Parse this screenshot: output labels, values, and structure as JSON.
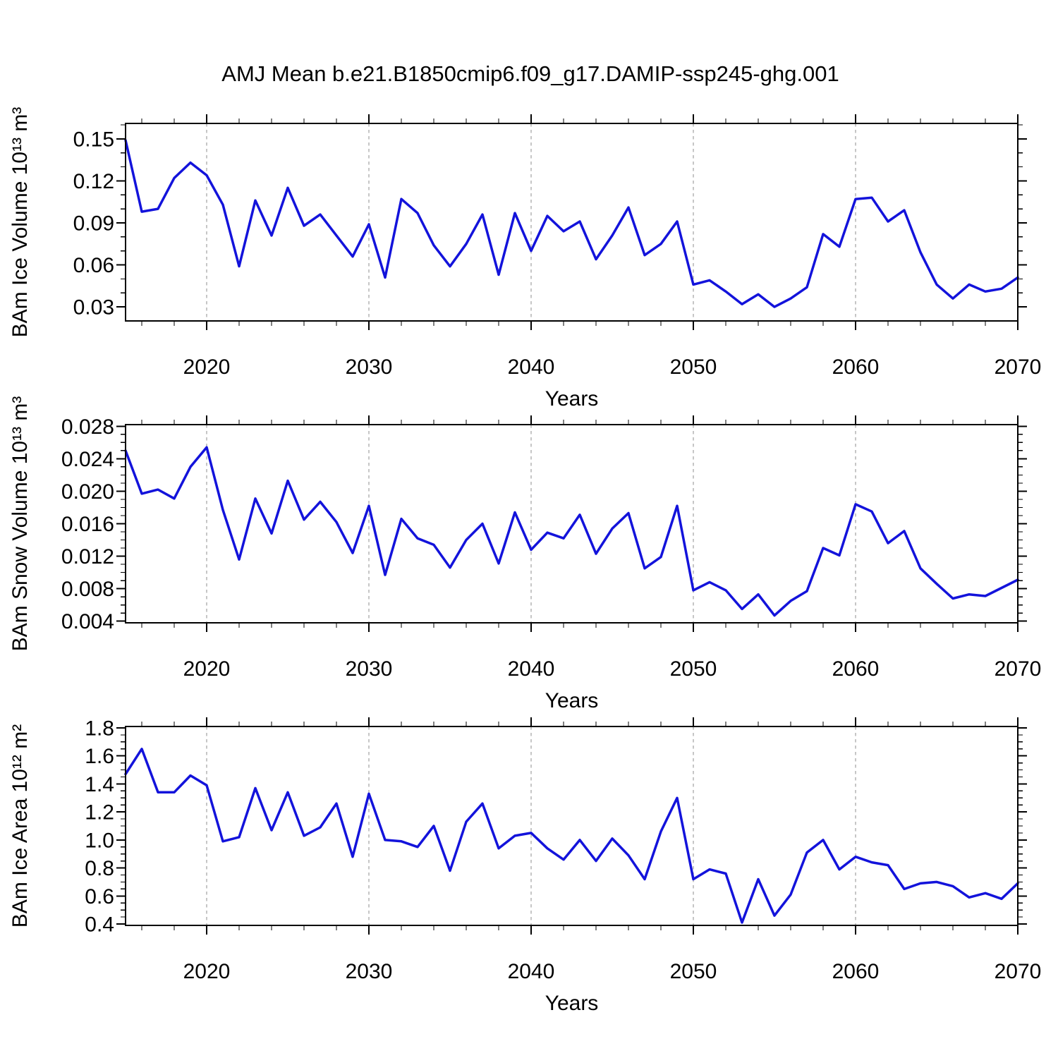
{
  "title": "AMJ Mean b.e21.B1850cmip6.f09_g17.DAMIP-ssp245-ghg.001",
  "colors": {
    "line": "#1313db",
    "grid": "#8c8c8c",
    "axis": "#000000",
    "background": "#ffffff",
    "text": "#000000"
  },
  "chart_data": [
    {
      "type": "line",
      "name": "bam-ice-volume",
      "ylabel": "BAm Ice Volume 10¹³ m³",
      "xlabel": "Years",
      "xlim": [
        2015,
        2070
      ],
      "ylim": [
        0.02,
        0.161
      ],
      "xticks": {
        "major": [
          2020,
          2030,
          2040,
          2050,
          2060,
          2070
        ],
        "labels": [
          "2020",
          "2030",
          "2040",
          "2050",
          "2060",
          "2070"
        ],
        "minor_step": 2
      },
      "yticks": {
        "major": [
          0.03,
          0.06,
          0.09,
          0.12,
          0.15
        ],
        "labels": [
          "0.03",
          "0.06",
          "0.09",
          "0.12",
          "0.15"
        ],
        "minor_step": 0.01
      },
      "grid_x": [
        2020,
        2030,
        2040,
        2050,
        2060
      ],
      "legend": null,
      "x": [
        2015,
        2016,
        2017,
        2018,
        2019,
        2020,
        2021,
        2022,
        2023,
        2024,
        2025,
        2026,
        2027,
        2028,
        2029,
        2030,
        2031,
        2032,
        2033,
        2034,
        2035,
        2036,
        2037,
        2038,
        2039,
        2040,
        2041,
        2042,
        2043,
        2044,
        2045,
        2046,
        2047,
        2048,
        2049,
        2050,
        2051,
        2052,
        2053,
        2054,
        2055,
        2056,
        2057,
        2058,
        2059,
        2060,
        2061,
        2062,
        2063,
        2064,
        2065,
        2066,
        2067,
        2068,
        2069,
        2070
      ],
      "values": [
        0.149,
        0.098,
        0.1,
        0.122,
        0.133,
        0.124,
        0.103,
        0.059,
        0.106,
        0.081,
        0.115,
        0.088,
        0.096,
        0.081,
        0.066,
        0.089,
        0.051,
        0.107,
        0.097,
        0.074,
        0.059,
        0.075,
        0.096,
        0.053,
        0.097,
        0.07,
        0.095,
        0.084,
        0.091,
        0.064,
        0.081,
        0.101,
        0.067,
        0.075,
        0.091,
        0.046,
        0.049,
        0.041,
        0.032,
        0.039,
        0.03,
        0.036,
        0.044,
        0.082,
        0.073,
        0.107,
        0.108,
        0.091,
        0.099,
        0.069,
        0.046,
        0.036,
        0.046,
        0.041,
        0.043,
        0.051
      ]
    },
    {
      "type": "line",
      "name": "bam-snow-volume",
      "ylabel": "BAm Snow Volume 10¹³ m³",
      "xlabel": "Years",
      "xlim": [
        2015,
        2070
      ],
      "ylim": [
        0.0038,
        0.0282
      ],
      "xticks": {
        "major": [
          2020,
          2030,
          2040,
          2050,
          2060,
          2070
        ],
        "labels": [
          "2020",
          "2030",
          "2040",
          "2050",
          "2060",
          "2070"
        ],
        "minor_step": 2
      },
      "yticks": {
        "major": [
          0.004,
          0.008,
          0.012,
          0.016,
          0.02,
          0.024,
          0.028
        ],
        "labels": [
          "0.004",
          "0.008",
          "0.012",
          "0.016",
          "0.020",
          "0.024",
          "0.028"
        ],
        "minor_step": 0.001
      },
      "grid_x": [
        2020,
        2030,
        2040,
        2050,
        2060
      ],
      "legend": null,
      "x": [
        2015,
        2016,
        2017,
        2018,
        2019,
        2020,
        2021,
        2022,
        2023,
        2024,
        2025,
        2026,
        2027,
        2028,
        2029,
        2030,
        2031,
        2032,
        2033,
        2034,
        2035,
        2036,
        2037,
        2038,
        2039,
        2040,
        2041,
        2042,
        2043,
        2044,
        2045,
        2046,
        2047,
        2048,
        2049,
        2050,
        2051,
        2052,
        2053,
        2054,
        2055,
        2056,
        2057,
        2058,
        2059,
        2060,
        2061,
        2062,
        2063,
        2064,
        2065,
        2066,
        2067,
        2068,
        2069,
        2070
      ],
      "values": [
        0.025,
        0.0197,
        0.0202,
        0.0191,
        0.023,
        0.0254,
        0.0177,
        0.0116,
        0.0191,
        0.0148,
        0.0213,
        0.0165,
        0.0187,
        0.0162,
        0.0124,
        0.0182,
        0.0097,
        0.0166,
        0.0142,
        0.0134,
        0.0106,
        0.014,
        0.016,
        0.0111,
        0.0174,
        0.0128,
        0.0149,
        0.0142,
        0.0171,
        0.0123,
        0.0154,
        0.0173,
        0.0105,
        0.0119,
        0.0182,
        0.0078,
        0.0088,
        0.0078,
        0.0055,
        0.0073,
        0.0047,
        0.0065,
        0.0077,
        0.013,
        0.0121,
        0.0184,
        0.0175,
        0.0136,
        0.0151,
        0.0105,
        0.0086,
        0.0068,
        0.0073,
        0.0071,
        0.0081,
        0.0091
      ]
    },
    {
      "type": "line",
      "name": "bam-ice-area",
      "ylabel": "BAm Ice Area 10¹² m²",
      "xlabel": "Years",
      "xlim": [
        2015,
        2070
      ],
      "ylim": [
        0.39,
        1.81
      ],
      "xticks": {
        "major": [
          2020,
          2030,
          2040,
          2050,
          2060,
          2070
        ],
        "labels": [
          "2020",
          "2030",
          "2040",
          "2050",
          "2060",
          "2070"
        ],
        "minor_step": 2
      },
      "yticks": {
        "major": [
          0.4,
          0.6,
          0.8,
          1.0,
          1.2,
          1.4,
          1.6,
          1.8
        ],
        "labels": [
          "0.4",
          "0.6",
          "0.8",
          "1.0",
          "1.2",
          "1.4",
          "1.6",
          "1.8"
        ],
        "minor_step": 0.05
      },
      "grid_x": [
        2020,
        2030,
        2040,
        2050,
        2060
      ],
      "legend": null,
      "x": [
        2015,
        2016,
        2017,
        2018,
        2019,
        2020,
        2021,
        2022,
        2023,
        2024,
        2025,
        2026,
        2027,
        2028,
        2029,
        2030,
        2031,
        2032,
        2033,
        2034,
        2035,
        2036,
        2037,
        2038,
        2039,
        2040,
        2041,
        2042,
        2043,
        2044,
        2045,
        2046,
        2047,
        2048,
        2049,
        2050,
        2051,
        2052,
        2053,
        2054,
        2055,
        2056,
        2057,
        2058,
        2059,
        2060,
        2061,
        2062,
        2063,
        2064,
        2065,
        2066,
        2067,
        2068,
        2069,
        2070
      ],
      "values": [
        1.47,
        1.65,
        1.34,
        1.34,
        1.46,
        1.39,
        0.99,
        1.02,
        1.37,
        1.07,
        1.34,
        1.03,
        1.09,
        1.26,
        0.88,
        1.33,
        1.0,
        0.99,
        0.95,
        1.1,
        0.78,
        1.13,
        1.26,
        0.94,
        1.03,
        1.05,
        0.94,
        0.86,
        1.0,
        0.85,
        1.01,
        0.89,
        0.72,
        1.06,
        1.3,
        0.72,
        0.79,
        0.76,
        0.41,
        0.72,
        0.46,
        0.61,
        0.91,
        1.0,
        0.79,
        0.88,
        0.84,
        0.82,
        0.65,
        0.69,
        0.7,
        0.67,
        0.59,
        0.62,
        0.58,
        0.69
      ]
    }
  ]
}
